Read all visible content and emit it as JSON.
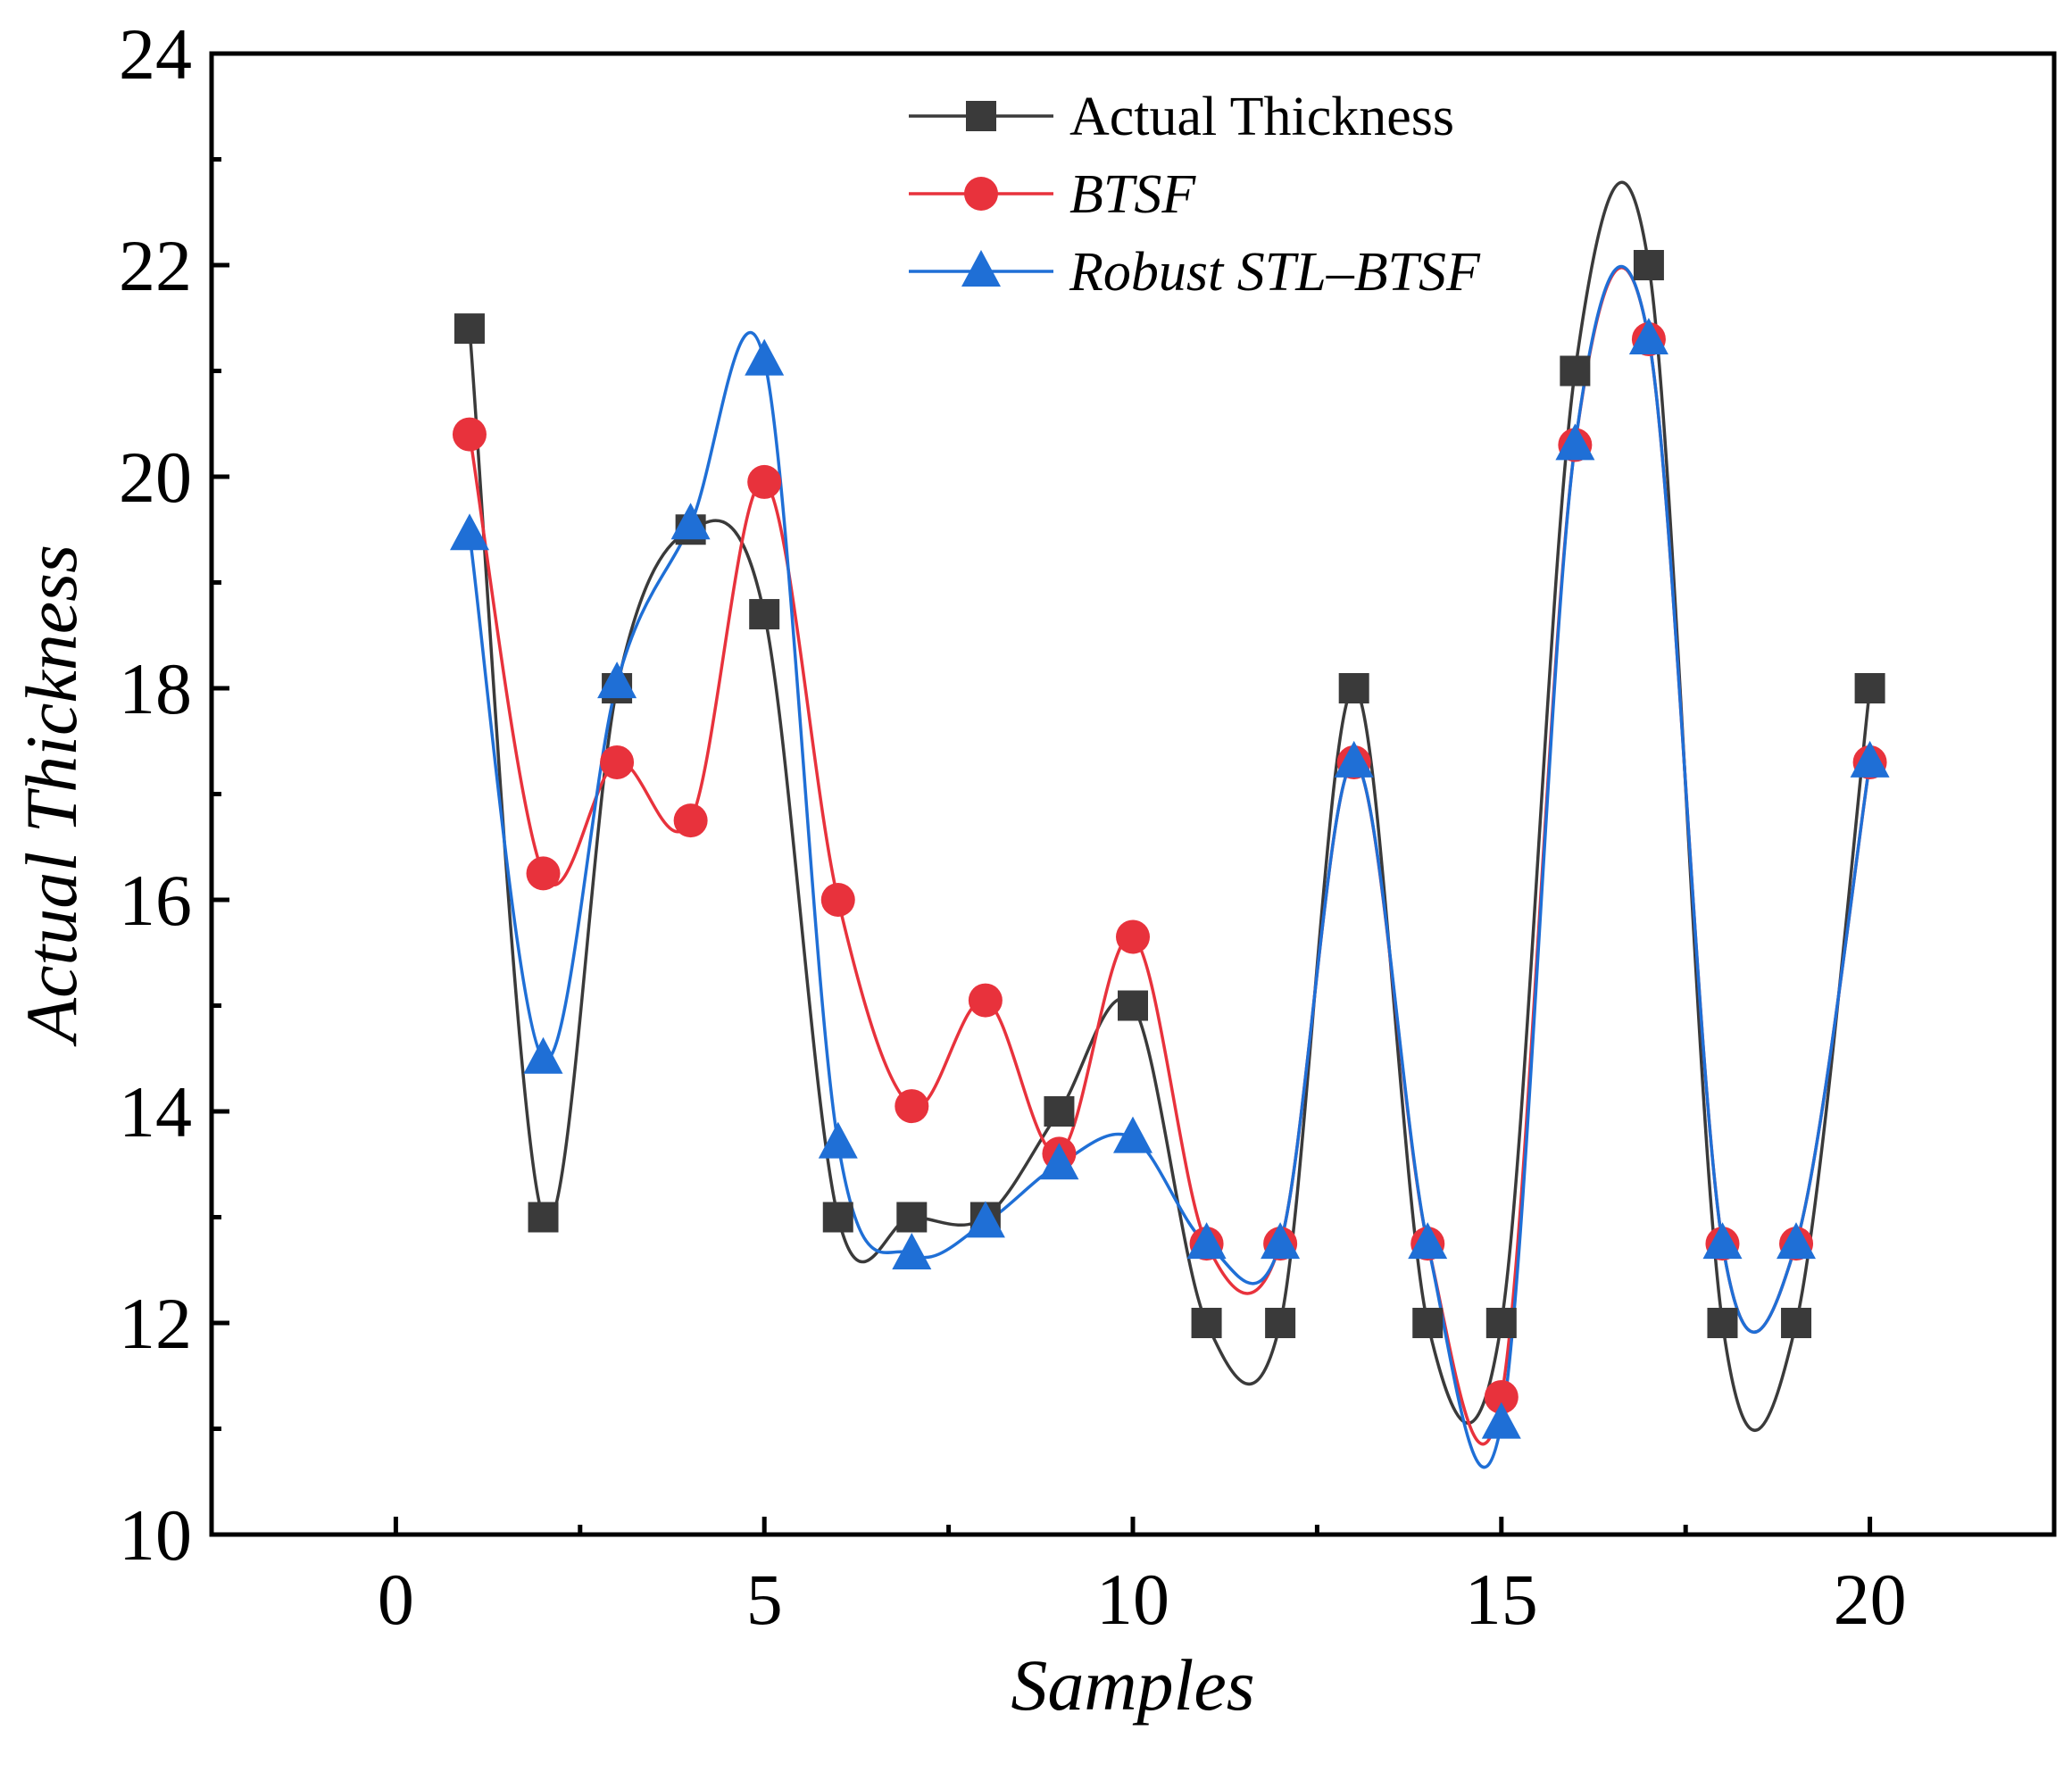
{
  "chart_data": {
    "type": "line",
    "xlabel": "Samples",
    "ylabel": "Actual Thickness",
    "xlim": [
      -2.5,
      22.5
    ],
    "ylim": [
      10,
      24
    ],
    "x_ticks": [
      0,
      5,
      10,
      15,
      20
    ],
    "x_tick_labels": [
      "0",
      "5",
      "10",
      "15",
      "20"
    ],
    "x_minor_ticks": [
      2.5,
      7.5,
      12.5,
      17.5
    ],
    "y_ticks": [
      10,
      12,
      14,
      16,
      18,
      20,
      22,
      24
    ],
    "y_tick_labels": [
      "10",
      "12",
      "14",
      "16",
      "18",
      "20",
      "22",
      "24"
    ],
    "y_minor_ticks": [
      11,
      13,
      15,
      17,
      19,
      21,
      23
    ],
    "grid": false,
    "legend_position": "top-right",
    "x": [
      1,
      2,
      3,
      4,
      5,
      6,
      7,
      8,
      9,
      10,
      11,
      12,
      13,
      14,
      15,
      16,
      17,
      18,
      19,
      20
    ],
    "series": [
      {
        "name": "Actual Thickness",
        "marker": "square",
        "color": "#3a3a3a",
        "italic": false,
        "values": [
          21.4,
          13,
          18,
          19.5,
          18.7,
          13,
          13,
          13,
          14,
          15,
          12,
          12,
          18,
          12,
          12,
          21,
          22,
          12,
          12,
          18
        ]
      },
      {
        "name": "BTSF",
        "marker": "circle",
        "color": "#e8323c",
        "italic": true,
        "values": [
          20.4,
          16.25,
          17.3,
          16.75,
          19.95,
          16,
          14.05,
          15.05,
          13.6,
          15.65,
          12.75,
          12.75,
          17.3,
          12.75,
          11.3,
          20.3,
          21.3,
          12.75,
          12.75,
          17.3
        ]
      },
      {
        "name": "Robust STL–BTSF",
        "marker": "triangle",
        "color": "#1f6fd6",
        "italic": true,
        "values": [
          19.45,
          14.5,
          18.05,
          19.55,
          21.1,
          13.7,
          12.65,
          12.95,
          13.5,
          13.75,
          12.75,
          12.75,
          17.3,
          12.75,
          11.05,
          20.3,
          21.3,
          12.75,
          12.75,
          17.3
        ]
      }
    ]
  }
}
